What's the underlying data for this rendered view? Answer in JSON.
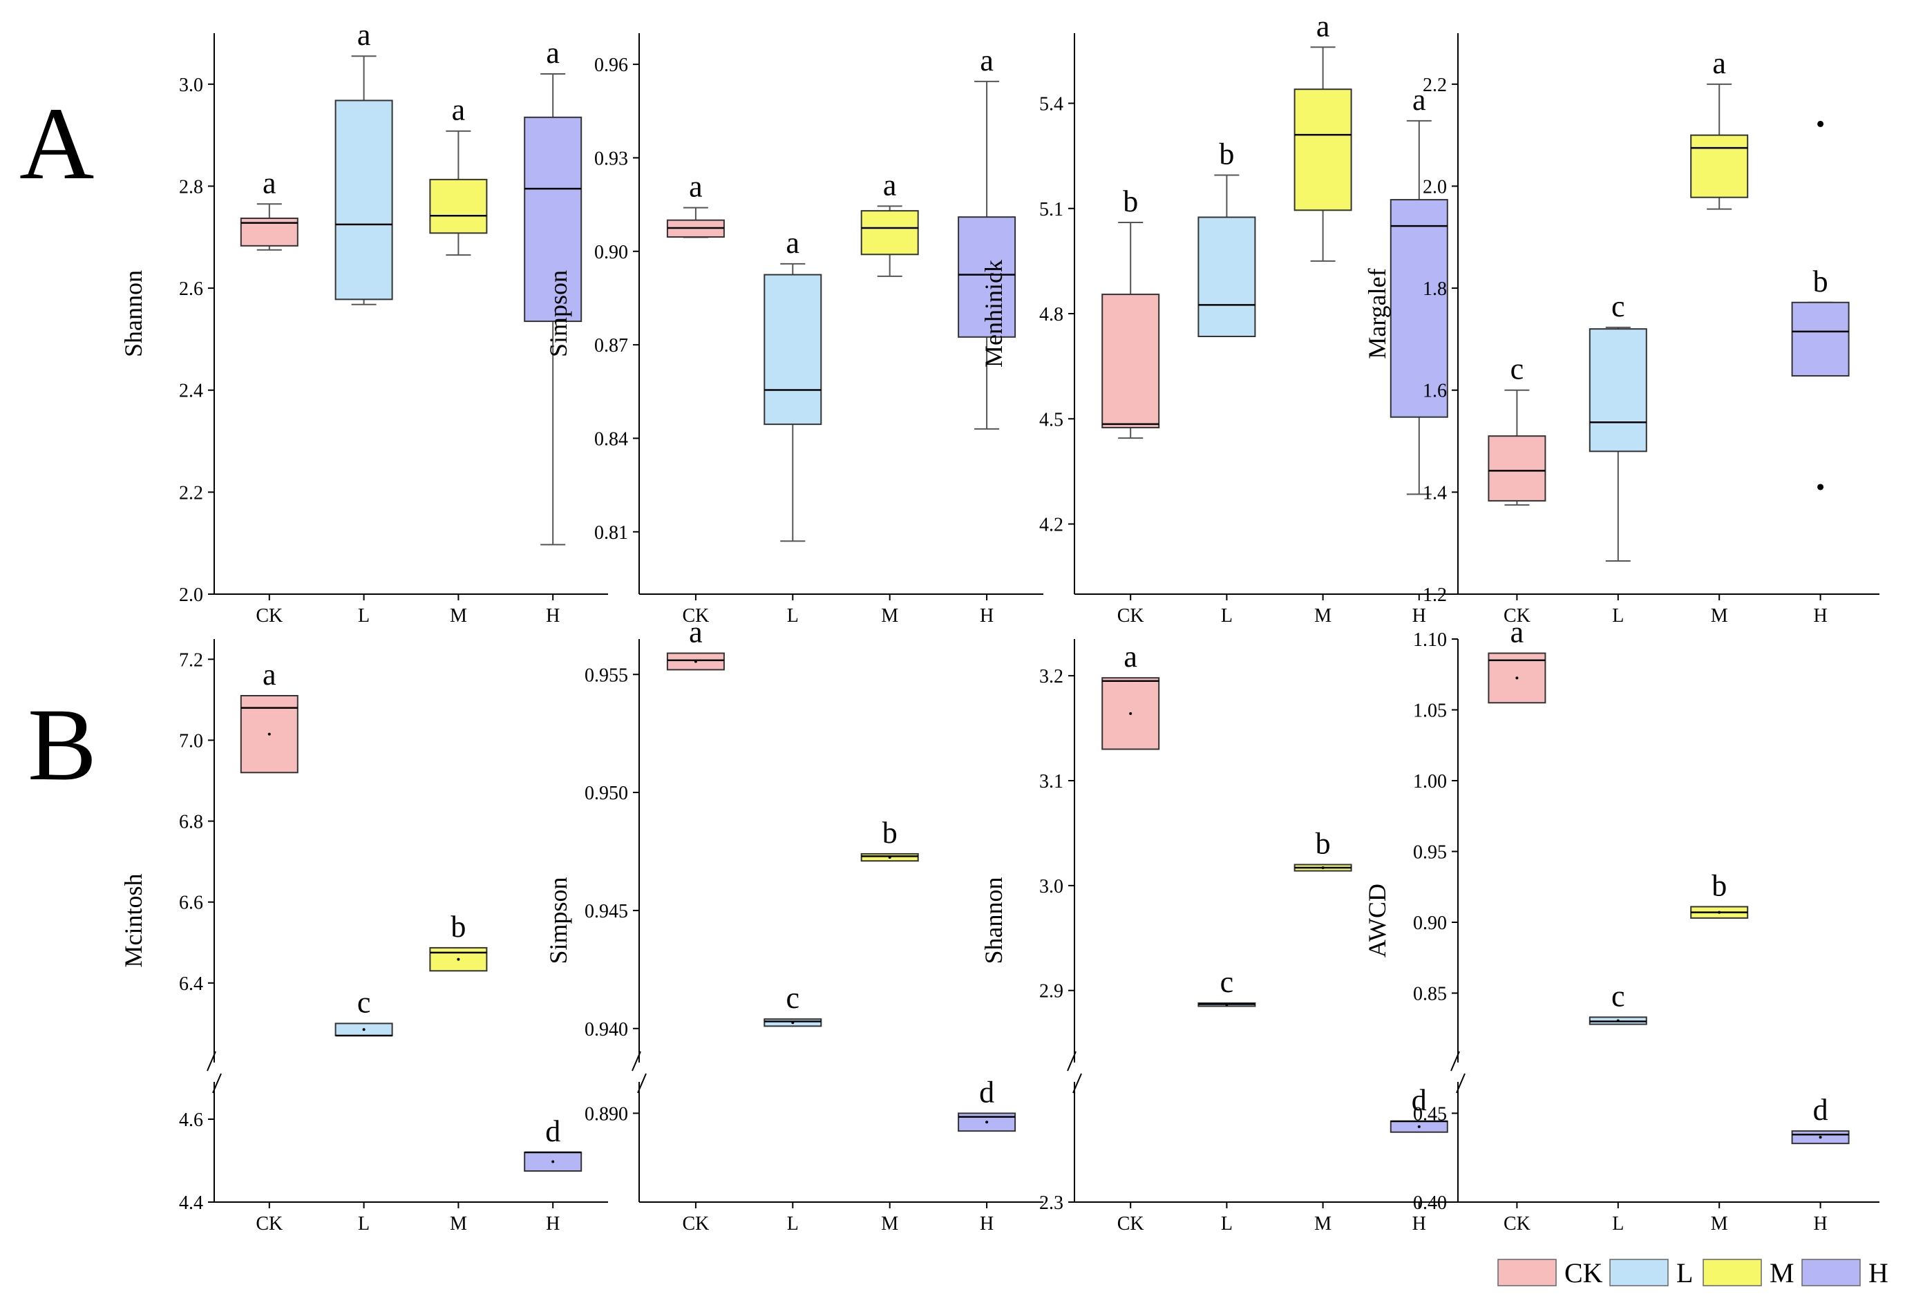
{
  "panel_labels": [
    "A",
    "B"
  ],
  "colors": {
    "CK": "#f7bcbc",
    "L": "#bfe2f8",
    "M": "#f7f76a",
    "H": "#b4b6f5"
  },
  "legend": {
    "items": [
      "CK",
      "L",
      "M",
      "H"
    ]
  },
  "chart_data": [
    {
      "type": "boxplot",
      "panel": "A",
      "ylabel": "Shannon",
      "categories": [
        "CK",
        "L",
        "M",
        "H"
      ],
      "yticks": [
        2.0,
        2.2,
        2.4,
        2.6,
        2.8,
        3.0
      ],
      "ylim": [
        2.0,
        3.1
      ],
      "boxes": [
        {
          "name": "CK",
          "min": 2.675,
          "q1": 2.683,
          "median": 2.728,
          "q3": 2.737,
          "max": 2.765,
          "letter": "a"
        },
        {
          "name": "L",
          "min": 2.568,
          "q1": 2.578,
          "median": 2.725,
          "q3": 2.968,
          "max": 3.055,
          "letter": "a"
        },
        {
          "name": "M",
          "min": 2.665,
          "q1": 2.708,
          "median": 2.742,
          "q3": 2.813,
          "max": 2.908,
          "letter": "a"
        },
        {
          "name": "H",
          "min": 2.097,
          "q1": 2.535,
          "median": 2.795,
          "q3": 2.935,
          "max": 3.02,
          "letter": "a"
        }
      ]
    },
    {
      "type": "boxplot",
      "panel": "A",
      "ylabel": "Simpson",
      "categories": [
        "CK",
        "L",
        "M",
        "H"
      ],
      "yticks": [
        0.81,
        0.84,
        0.87,
        0.9,
        0.93,
        0.96
      ],
      "ylim": [
        0.79,
        0.97
      ],
      "boxes": [
        {
          "name": "CK",
          "min": 0.9045,
          "q1": 0.9046,
          "median": 0.9075,
          "q3": 0.91,
          "max": 0.914,
          "letter": "a"
        },
        {
          "name": "L",
          "min": 0.807,
          "q1": 0.8445,
          "median": 0.8555,
          "q3": 0.8925,
          "max": 0.896,
          "letter": "a"
        },
        {
          "name": "M",
          "min": 0.892,
          "q1": 0.899,
          "median": 0.9075,
          "q3": 0.913,
          "max": 0.9145,
          "letter": "a"
        },
        {
          "name": "H",
          "min": 0.843,
          "q1": 0.8725,
          "median": 0.8925,
          "q3": 0.911,
          "max": 0.9545,
          "letter": "a"
        }
      ]
    },
    {
      "type": "boxplot",
      "panel": "A",
      "ylabel": "Menhinick",
      "categories": [
        "CK",
        "L",
        "M",
        "H"
      ],
      "yticks": [
        4.2,
        4.5,
        4.8,
        5.1,
        5.4
      ],
      "ylim": [
        4.0,
        5.6
      ],
      "boxes": [
        {
          "name": "CK",
          "min": 4.445,
          "q1": 4.475,
          "median": 4.485,
          "q3": 4.855,
          "max": 5.06,
          "letter": "b"
        },
        {
          "name": "L",
          "min": 4.735,
          "q1": 4.735,
          "median": 4.825,
          "q3": 5.075,
          "max": 5.195,
          "letter": "b"
        },
        {
          "name": "M",
          "min": 4.95,
          "q1": 5.095,
          "median": 5.31,
          "q3": 5.44,
          "max": 5.56,
          "letter": "a"
        },
        {
          "name": "H",
          "min": 4.285,
          "q1": 4.505,
          "median": 5.05,
          "q3": 5.125,
          "max": 5.35,
          "letter": "a"
        }
      ]
    },
    {
      "type": "boxplot",
      "panel": "A",
      "ylabel": "Margalef",
      "categories": [
        "CK",
        "L",
        "M",
        "H"
      ],
      "yticks": [
        1.2,
        1.4,
        1.6,
        1.8,
        2.0,
        2.2
      ],
      "ylim": [
        1.2,
        2.3
      ],
      "boxes": [
        {
          "name": "CK",
          "min": 1.375,
          "q1": 1.383,
          "median": 1.442,
          "q3": 1.51,
          "max": 1.6,
          "letter": "c"
        },
        {
          "name": "L",
          "min": 1.265,
          "q1": 1.48,
          "median": 1.537,
          "q3": 1.72,
          "max": 1.723,
          "letter": "c"
        },
        {
          "name": "M",
          "min": 1.955,
          "q1": 1.978,
          "median": 2.075,
          "q3": 2.1,
          "max": 2.2,
          "letter": "a"
        },
        {
          "name": "H",
          "min": 1.628,
          "q1": 1.628,
          "median": 1.715,
          "q3": 1.772,
          "max": 1.772,
          "letter": "b",
          "outliers": [
            2.122,
            1.41
          ]
        }
      ]
    },
    {
      "type": "boxplot",
      "panel": "B",
      "ylabel": "Mcintosh",
      "categories": [
        "CK",
        "L",
        "M",
        "H"
      ],
      "yticks_upper": [
        6.4,
        6.6,
        6.8,
        7.0,
        7.2
      ],
      "yticks_lower": [
        4.4,
        4.6
      ],
      "ylim_upper": [
        6.2,
        7.25
      ],
      "ylim_lower": [
        4.4,
        4.7
      ],
      "axis_break": true,
      "boxes": [
        {
          "name": "CK",
          "q1": 6.92,
          "median": 7.08,
          "q3": 7.11,
          "letter": "a"
        },
        {
          "name": "L",
          "q1": 6.27,
          "median": 6.27,
          "q3": 6.3,
          "letter": "c"
        },
        {
          "name": "M",
          "q1": 6.43,
          "median": 6.475,
          "q3": 6.487,
          "letter": "b"
        },
        {
          "name": "H",
          "q1": 4.475,
          "median": 4.52,
          "q3": 4.52,
          "letter": "d"
        }
      ]
    },
    {
      "type": "boxplot",
      "panel": "B",
      "ylabel": "Simpson",
      "categories": [
        "CK",
        "L",
        "M",
        "H"
      ],
      "yticks_upper": [
        0.94,
        0.945,
        0.95,
        0.955
      ],
      "yticks_lower": [
        0.89
      ],
      "ytick_labels_upper": [
        "0.940",
        "0.945",
        "0.950",
        "0.955"
      ],
      "ytick_labels_lower": [
        "0.890"
      ],
      "ylim_upper": [
        0.9385,
        0.9565
      ],
      "ylim_lower": [
        0.8875,
        0.891
      ],
      "axis_break": true,
      "boxes": [
        {
          "name": "CK",
          "q1": 0.9552,
          "median": 0.9556,
          "q3": 0.9559,
          "letter": "a"
        },
        {
          "name": "L",
          "q1": 0.9401,
          "median": 0.9403,
          "q3": 0.9404,
          "letter": "c"
        },
        {
          "name": "M",
          "q1": 0.9471,
          "median": 0.9473,
          "q3": 0.9474,
          "letter": "b"
        },
        {
          "name": "H",
          "q1": 0.8895,
          "median": 0.8899,
          "q3": 0.89,
          "letter": "d"
        }
      ]
    },
    {
      "type": "boxplot",
      "panel": "B",
      "ylabel": "Shannon",
      "categories": [
        "CK",
        "L",
        "M",
        "H"
      ],
      "yticks_upper": [
        2.9,
        3.0,
        3.1,
        3.2
      ],
      "yticks_lower": [
        2.3
      ],
      "ytick_labels_upper": [
        "2.9",
        "3.0",
        "3.1",
        "3.2"
      ],
      "ytick_labels_lower": [
        "2.3"
      ],
      "ylim_upper": [
        2.83,
        3.235
      ],
      "ylim_lower": [
        2.3,
        2.38
      ],
      "axis_break": true,
      "boxes": [
        {
          "name": "CK",
          "q1": 3.13,
          "median": 3.195,
          "q3": 3.198,
          "letter": "a"
        },
        {
          "name": "L",
          "q1": 2.885,
          "median": 2.887,
          "q3": 2.888,
          "letter": "c"
        },
        {
          "name": "M",
          "q1": 3.014,
          "median": 3.017,
          "q3": 3.02,
          "letter": "b"
        },
        {
          "name": "H",
          "q1": 2.345,
          "median": 2.352,
          "q3": 2.352,
          "letter": "d"
        }
      ]
    },
    {
      "type": "boxplot",
      "panel": "B",
      "ylabel": "AWCD",
      "categories": [
        "CK",
        "L",
        "M",
        "H"
      ],
      "yticks_upper": [
        0.85,
        0.9,
        0.95,
        1.0,
        1.05,
        1.1
      ],
      "yticks_lower": [
        0.4,
        0.45
      ],
      "ytick_labels_upper": [
        "0.85",
        "0.90",
        "0.95",
        "1.00",
        "1.05",
        "1.10"
      ],
      "ytick_labels_lower": [
        "0.40",
        "0.45"
      ],
      "ylim_upper": [
        0.8,
        1.1
      ],
      "ylim_lower": [
        0.4,
        0.47
      ],
      "axis_break": true,
      "boxes": [
        {
          "name": "CK",
          "q1": 1.055,
          "median": 1.085,
          "q3": 1.09,
          "letter": "a"
        },
        {
          "name": "L",
          "q1": 0.828,
          "median": 0.83,
          "q3": 0.833,
          "letter": "c"
        },
        {
          "name": "M",
          "q1": 0.903,
          "median": 0.907,
          "q3": 0.911,
          "letter": "b"
        },
        {
          "name": "H",
          "q1": 0.433,
          "median": 0.438,
          "q3": 0.44,
          "letter": "d"
        }
      ]
    }
  ]
}
